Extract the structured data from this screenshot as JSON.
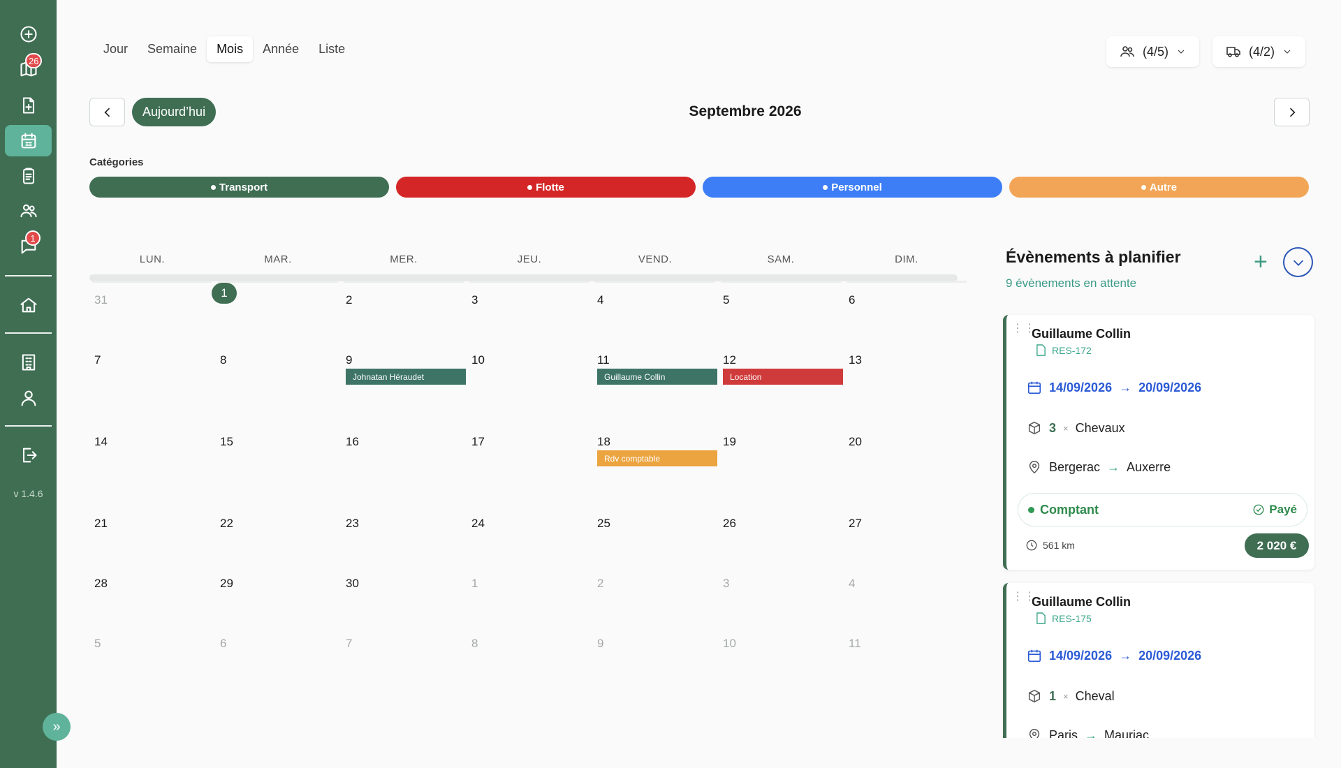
{
  "sidebar": {
    "badges": {
      "reservations": "26",
      "messages": "1"
    },
    "version": "v 1.4.6"
  },
  "views": [
    "Jour",
    "Semaine",
    "Mois",
    "Année",
    "Liste"
  ],
  "active_view": "Mois",
  "filters": {
    "staff": "(4/5)",
    "vehicles": "(4/2)"
  },
  "toolbar": {
    "today_label": "Aujourd’hui",
    "month_title": "Septembre 2026"
  },
  "categories": {
    "label": "Catégories",
    "items": [
      {
        "name": "Transport",
        "color": "#3f6e53"
      },
      {
        "name": "Flotte",
        "color": "#d42626"
      },
      {
        "name": "Personnel",
        "color": "#3d7ef7"
      },
      {
        "name": "Autre",
        "color": "#f2a556"
      }
    ]
  },
  "calendar": {
    "weekdays": [
      "LUN.",
      "MAR.",
      "MER.",
      "JEU.",
      "VEND.",
      "SAM.",
      "DIM."
    ],
    "weeks": [
      [
        "31",
        "1",
        "2",
        "3",
        "4",
        "5",
        "6"
      ],
      [
        "7",
        "8",
        "9",
        "10",
        "11",
        "12",
        "13"
      ],
      [
        "14",
        "15",
        "16",
        "17",
        "18",
        "19",
        "20"
      ],
      [
        "21",
        "22",
        "23",
        "24",
        "25",
        "26",
        "27"
      ],
      [
        "28",
        "29",
        "30",
        "1",
        "2",
        "3",
        "4"
      ],
      [
        "5",
        "6",
        "7",
        "8",
        "9",
        "10",
        "11"
      ]
    ],
    "events": [
      {
        "label": "Johnatan Héraudet",
        "week": 1,
        "day": 2,
        "color": "#3d7466"
      },
      {
        "label": "Guillaume Collin",
        "week": 1,
        "day": 4,
        "color": "#3d7466"
      },
      {
        "label": "Location",
        "week": 1,
        "day": 5,
        "color": "#cf3a3a"
      },
      {
        "label": "Rdv comptable",
        "week": 2,
        "day": 4,
        "color": "#eba43f"
      }
    ]
  },
  "panel": {
    "title": "Évènements à planifier",
    "subtitle": "9 évènements en attente",
    "cards": [
      {
        "name": "Guillaume Collin",
        "ref": "RES-172",
        "date_from": "14/09/2026",
        "date_to": "20/09/2026",
        "qty": "3",
        "cargo": "Chevaux",
        "from": "Bergerac",
        "to": "Auxerre",
        "payment": "Comptant",
        "status": "Payé",
        "distance": "561 km",
        "price": "2 020 €"
      },
      {
        "name": "Guillaume Collin",
        "ref": "RES-175",
        "date_from": "14/09/2026",
        "date_to": "20/09/2026",
        "qty": "1",
        "cargo": "Cheval",
        "from": "Paris",
        "to": "Mauriac"
      }
    ]
  }
}
